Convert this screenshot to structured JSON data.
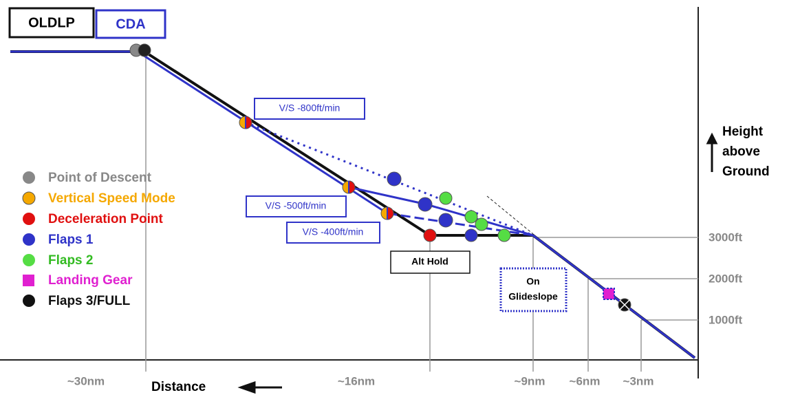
{
  "header": {
    "oldlp": "OLDLP",
    "cda": "CDA"
  },
  "legend": [
    "Point of Descent",
    "Vertical Speed Mode",
    "Deceleration Point",
    "Flaps 1",
    "Flaps 2",
    "Landing Gear",
    "Flaps 3/FULL"
  ],
  "annotations": {
    "vs800": "V/S -800ft/min",
    "vs500": "V/S -500ft/min",
    "vs400": "V/S -400ft/min",
    "alt_hold": "Alt Hold",
    "glideslope": [
      "On",
      "Glideslope"
    ]
  },
  "y_axis": {
    "label": [
      "Height",
      "above",
      "Ground"
    ],
    "ticks": [
      "3000ft",
      "2000ft",
      "1000ft"
    ]
  },
  "x_axis": {
    "label": "Distance",
    "ticks": [
      "~30nm",
      "~16nm",
      "~9nm",
      "~6nm",
      "~3nm"
    ]
  }
}
